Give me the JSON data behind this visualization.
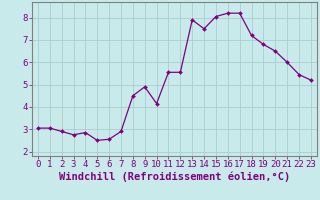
{
  "x": [
    0,
    1,
    2,
    3,
    4,
    5,
    6,
    7,
    8,
    9,
    10,
    11,
    12,
    13,
    14,
    15,
    16,
    17,
    18,
    19,
    20,
    21,
    22,
    23
  ],
  "y": [
    3.05,
    3.05,
    2.9,
    2.75,
    2.85,
    2.5,
    2.55,
    2.9,
    4.5,
    4.9,
    4.15,
    5.55,
    5.55,
    7.9,
    7.5,
    8.05,
    8.2,
    8.2,
    7.2,
    6.8,
    6.5,
    6.0,
    5.45,
    5.2
  ],
  "line_color": "#800080",
  "marker_color": "#800080",
  "bg_color": "#c8eaea",
  "grid_color": "#aacece",
  "axis_label_color": "#800080",
  "spine_color": "#808080",
  "xlabel": "Windchill (Refroidissement éolien,°C)",
  "ylim": [
    1.8,
    8.7
  ],
  "xlim": [
    -0.5,
    23.5
  ],
  "yticks": [
    2,
    3,
    4,
    5,
    6,
    7,
    8
  ],
  "xticks": [
    0,
    1,
    2,
    3,
    4,
    5,
    6,
    7,
    8,
    9,
    10,
    11,
    12,
    13,
    14,
    15,
    16,
    17,
    18,
    19,
    20,
    21,
    22,
    23
  ],
  "tick_label_fontsize": 6.5,
  "xlabel_fontsize": 7.5
}
